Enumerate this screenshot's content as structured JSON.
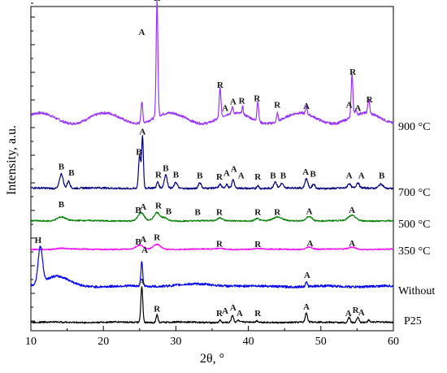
{
  "chart_data": {
    "type": "line",
    "xlabel": "2θ, °",
    "ylabel": "Intensity, a.u.",
    "xlim": [
      10,
      60
    ],
    "xticks": [
      10,
      20,
      30,
      40,
      50,
      60
    ],
    "y_tick_labels": "none",
    "grid": false,
    "legend": "labels at right end of each trace",
    "series": [
      {
        "name": "900 °C",
        "color": "#9933ff",
        "baseline": 1.0,
        "peaks": [
          [
            25.3,
            1.0,
            0.12
          ],
          [
            27.4,
            5.5,
            0.12
          ],
          [
            36.1,
            1.4,
            0.12
          ],
          [
            37.8,
            0.3,
            0.1
          ],
          [
            39.2,
            0.35,
            0.1
          ],
          [
            41.3,
            0.95,
            0.12
          ],
          [
            44.0,
            0.4,
            0.1
          ],
          [
            48.0,
            0.4,
            0.1
          ],
          [
            54.3,
            2.0,
            0.12
          ],
          [
            54.8,
            0.3,
            0.1
          ],
          [
            56.6,
            0.7,
            0.12
          ]
        ],
        "annotations": [
          {
            "x": 25.3,
            "text": "A",
            "rel_height": 4.2
          },
          {
            "x": 27.4,
            "text": "R",
            "rel_height": 5.8
          },
          {
            "x": 36.1,
            "text": "R",
            "rel_height": 1.7
          },
          {
            "x": 36.8,
            "text": "A",
            "rel_height": 0.6
          },
          {
            "x": 37.9,
            "text": "A",
            "rel_height": 0.9
          },
          {
            "x": 39.1,
            "text": "R",
            "rel_height": 0.95
          },
          {
            "x": 41.2,
            "text": "R",
            "rel_height": 1.05
          },
          {
            "x": 44.0,
            "text": "R",
            "rel_height": 0.75
          },
          {
            "x": 48.0,
            "text": "A",
            "rel_height": 0.7
          },
          {
            "x": 53.9,
            "text": "A",
            "rel_height": 0.75
          },
          {
            "x": 54.4,
            "text": "R",
            "rel_height": 2.3
          },
          {
            "x": 55.1,
            "text": "A",
            "rel_height": 0.6
          },
          {
            "x": 56.7,
            "text": "R",
            "rel_height": 1.0
          }
        ]
      },
      {
        "name": "700 °C",
        "color": "#000080",
        "baseline": 0.1,
        "peaks": [
          [
            14.2,
            1.0,
            0.25
          ],
          [
            15.2,
            0.5,
            0.2
          ],
          [
            25.0,
            2.3,
            0.15
          ],
          [
            25.4,
            3.5,
            0.12
          ],
          [
            27.5,
            0.4,
            0.15
          ],
          [
            28.6,
            0.9,
            0.2
          ],
          [
            30.0,
            0.4,
            0.2
          ],
          [
            33.3,
            0.4,
            0.2
          ],
          [
            36.1,
            0.25,
            0.15
          ],
          [
            37.0,
            0.25,
            0.15
          ],
          [
            37.9,
            0.6,
            0.15
          ],
          [
            41.3,
            0.2,
            0.15
          ],
          [
            43.7,
            0.45,
            0.2
          ],
          [
            44.6,
            0.3,
            0.2
          ],
          [
            48.0,
            0.65,
            0.2
          ],
          [
            49.0,
            0.3,
            0.2
          ],
          [
            53.9,
            0.3,
            0.2
          ],
          [
            55.1,
            0.35,
            0.2
          ],
          [
            58.3,
            0.3,
            0.3
          ]
        ],
        "annotations": [
          {
            "x": 14.2,
            "text": "B",
            "rel_height": 1.3
          },
          {
            "x": 15.6,
            "text": "B",
            "rel_height": 0.9
          },
          {
            "x": 24.9,
            "text": "B",
            "rel_height": 2.3
          },
          {
            "x": 25.4,
            "text": "A",
            "rel_height": 3.7
          },
          {
            "x": 27.6,
            "text": "R",
            "rel_height": 0.75
          },
          {
            "x": 28.6,
            "text": "B",
            "rel_height": 1.2
          },
          {
            "x": 30.0,
            "text": "B",
            "rel_height": 0.75
          },
          {
            "x": 33.3,
            "text": "B",
            "rel_height": 0.7
          },
          {
            "x": 36.0,
            "text": "R",
            "rel_height": 0.6
          },
          {
            "x": 37.0,
            "text": "A",
            "rel_height": 0.85
          },
          {
            "x": 38.0,
            "text": "A",
            "rel_height": 1.15
          },
          {
            "x": 39.0,
            "text": "A",
            "rel_height": 0.7
          },
          {
            "x": 41.3,
            "text": "R",
            "rel_height": 0.6
          },
          {
            "x": 43.4,
            "text": "B",
            "rel_height": 0.7
          },
          {
            "x": 44.8,
            "text": "B",
            "rel_height": 0.7
          },
          {
            "x": 47.9,
            "text": "A",
            "rel_height": 0.95
          },
          {
            "x": 48.9,
            "text": "B",
            "rel_height": 0.8
          },
          {
            "x": 53.9,
            "text": "A",
            "rel_height": 0.7
          },
          {
            "x": 55.6,
            "text": "A",
            "rel_height": 0.7
          },
          {
            "x": 58.4,
            "text": "B",
            "rel_height": 0.7
          }
        ]
      },
      {
        "name": "500 °C",
        "color": "#008000",
        "baseline": 0.1,
        "peaks": [
          [
            14.2,
            0.35,
            0.6
          ],
          [
            25.2,
            0.7,
            0.4
          ],
          [
            27.4,
            0.7,
            0.4
          ],
          [
            28.5,
            0.25,
            0.4
          ],
          [
            36.1,
            0.25,
            0.3
          ],
          [
            41.2,
            0.2,
            0.3
          ],
          [
            44.0,
            0.3,
            0.6
          ],
          [
            48.4,
            0.4,
            0.4
          ],
          [
            54.3,
            0.45,
            0.5
          ]
        ],
        "annotations": [
          {
            "x": 14.2,
            "text": "B",
            "rel_height": 1.2
          },
          {
            "x": 24.8,
            "text": "B",
            "rel_height": 0.7
          },
          {
            "x": 25.5,
            "text": "A",
            "rel_height": 1.0
          },
          {
            "x": 27.6,
            "text": "R",
            "rel_height": 1.1
          },
          {
            "x": 29.0,
            "text": "B",
            "rel_height": 0.6
          },
          {
            "x": 33.0,
            "text": "B",
            "rel_height": 0.55
          },
          {
            "x": 36.0,
            "text": "R",
            "rel_height": 0.55
          },
          {
            "x": 41.3,
            "text": "R",
            "rel_height": 0.55
          },
          {
            "x": 44.0,
            "text": "R",
            "rel_height": 0.55
          },
          {
            "x": 48.4,
            "text": "A",
            "rel_height": 0.6
          },
          {
            "x": 54.3,
            "text": "A",
            "rel_height": 0.7
          }
        ]
      },
      {
        "name": "350 °C",
        "color": "#ff00ff",
        "baseline": 0.1,
        "peaks": [
          [
            14.2,
            0.1,
            0.6
          ],
          [
            25.0,
            0.4,
            0.5
          ],
          [
            27.4,
            0.5,
            0.5
          ],
          [
            36.1,
            0.1,
            0.4
          ],
          [
            41.2,
            0.08,
            0.4
          ],
          [
            48.4,
            0.25,
            0.4
          ],
          [
            54.3,
            0.2,
            0.5
          ]
        ],
        "annotations": [
          {
            "x": 24.8,
            "text": "B",
            "rel_height": 0.5
          },
          {
            "x": 25.5,
            "text": "A",
            "rel_height": 0.75
          },
          {
            "x": 27.4,
            "text": "R",
            "rel_height": 0.95
          },
          {
            "x": 36.0,
            "text": "R",
            "rel_height": 0.3
          },
          {
            "x": 41.3,
            "text": "R",
            "rel_height": 0.25
          },
          {
            "x": 48.5,
            "text": "A",
            "rel_height": 0.35
          },
          {
            "x": 54.3,
            "text": "A",
            "rel_height": 0.35
          }
        ]
      },
      {
        "name": "Without",
        "color": "#0000ff",
        "baseline": 0.1,
        "peaks": [
          [
            11.3,
            1.85,
            0.3
          ],
          [
            25.3,
            1.3,
            0.12
          ],
          [
            48.0,
            0.2,
            0.12
          ]
        ],
        "annotations": [
          {
            "x": 11.0,
            "text": "H",
            "rel_height": 2.25
          },
          {
            "x": 25.7,
            "text": "A",
            "rel_height": 1.75
          },
          {
            "x": 48.1,
            "text": "A",
            "rel_height": 0.45
          }
        ]
      },
      {
        "name": "P25",
        "color": "#000000",
        "baseline": 0.1,
        "peaks": [
          [
            25.3,
            2.8,
            0.13
          ],
          [
            27.4,
            0.6,
            0.13
          ],
          [
            36.1,
            0.2,
            0.12
          ],
          [
            37.8,
            0.55,
            0.15
          ],
          [
            38.6,
            0.15,
            0.12
          ],
          [
            41.2,
            0.1,
            0.12
          ],
          [
            48.0,
            0.7,
            0.15
          ],
          [
            53.9,
            0.4,
            0.15
          ],
          [
            55.1,
            0.4,
            0.15
          ],
          [
            56.6,
            0.15,
            0.12
          ]
        ],
        "annotations": [
          {
            "x": 25.3,
            "text": "A",
            "rel_height": 2.95
          },
          {
            "x": 27.4,
            "text": "R",
            "rel_height": 0.85
          },
          {
            "x": 36.0,
            "text": "R",
            "rel_height": 0.5
          },
          {
            "x": 36.8,
            "text": "A",
            "rel_height": 0.7
          },
          {
            "x": 37.9,
            "text": "A",
            "rel_height": 0.95
          },
          {
            "x": 38.8,
            "text": "A",
            "rel_height": 0.5
          },
          {
            "x": 41.3,
            "text": "R",
            "rel_height": 0.5
          },
          {
            "x": 48.0,
            "text": "A",
            "rel_height": 1.0
          },
          {
            "x": 53.8,
            "text": "A",
            "rel_height": 0.5
          },
          {
            "x": 54.8,
            "text": "R",
            "rel_height": 0.75
          },
          {
            "x": 55.6,
            "text": "A",
            "rel_height": 0.55
          }
        ]
      }
    ]
  }
}
